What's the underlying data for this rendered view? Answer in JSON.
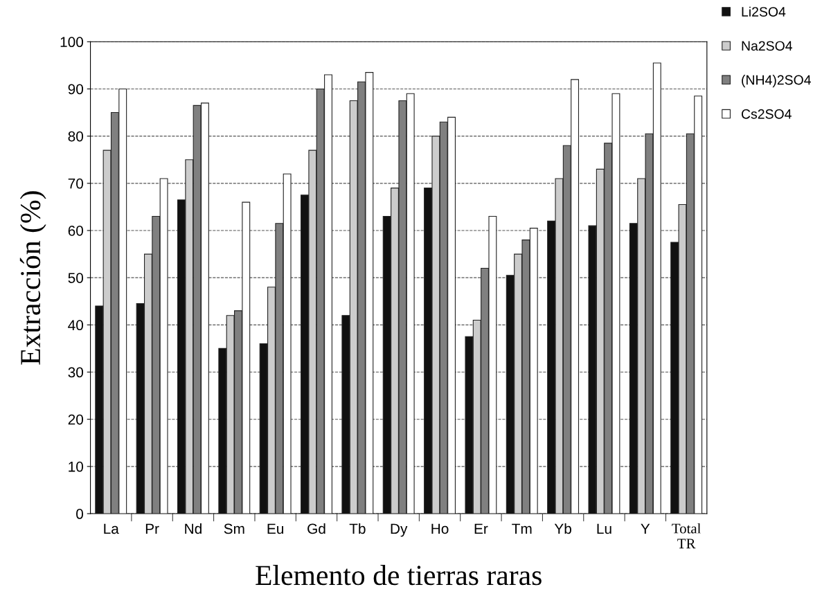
{
  "chart_data": {
    "type": "bar",
    "xlabel": "Elemento de tierras raras",
    "ylabel": "Extracción (%)",
    "categories": [
      "La",
      "Pr",
      "Nd",
      "Sm",
      "Eu",
      "Gd",
      "Tb",
      "Dy",
      "Ho",
      "Er",
      "Tm",
      "Yb",
      "Lu",
      "Y",
      "Total\nTR"
    ],
    "series": [
      {
        "name": "Li2SO4",
        "color": "#111111",
        "values": [
          44,
          44.5,
          66.5,
          35,
          36,
          67.5,
          42,
          63,
          69,
          37.5,
          50.5,
          62,
          61,
          61.5,
          57.5
        ]
      },
      {
        "name": "Na2SO4",
        "color": "#cccccc",
        "values": [
          77,
          55,
          75,
          42,
          48,
          77,
          87.5,
          69,
          80,
          41,
          55,
          71,
          73,
          71,
          65.5
        ]
      },
      {
        "name": "(NH4)2SO4",
        "color": "#808080",
        "values": [
          85,
          63,
          86.5,
          43,
          61.5,
          90,
          91.5,
          87.5,
          83,
          52,
          58,
          78,
          78.5,
          80.5,
          80.5
        ]
      },
      {
        "name": "Cs2SO4",
        "color": "#ffffff",
        "values": [
          90,
          71,
          87,
          66,
          72,
          93,
          93.5,
          89,
          84,
          63,
          60.5,
          92,
          89,
          95.5,
          88.5
        ]
      }
    ],
    "ylim": [
      0,
      100
    ],
    "yticks": [
      0,
      10,
      20,
      30,
      40,
      50,
      60,
      70,
      80,
      90,
      100
    ],
    "grid": "y",
    "legend": "top right"
  }
}
